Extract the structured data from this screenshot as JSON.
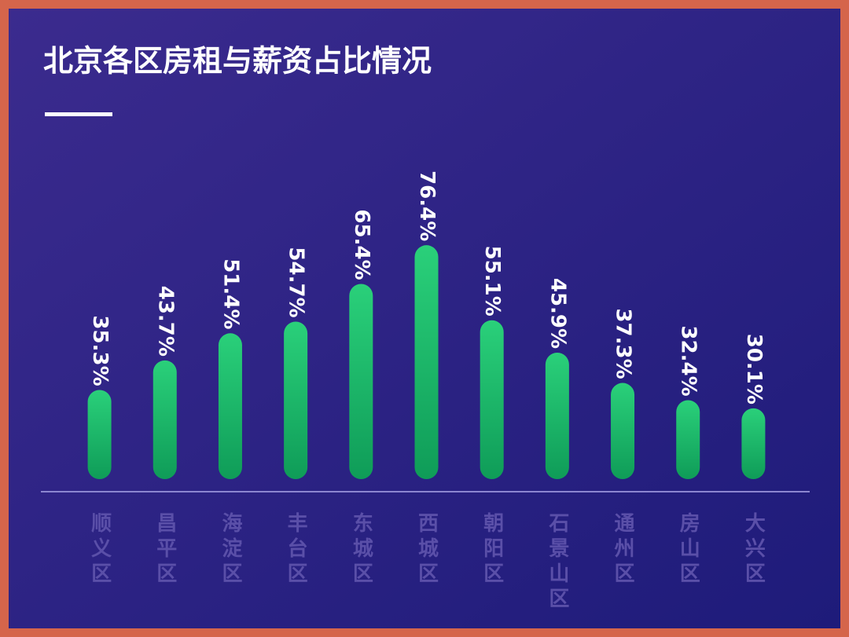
{
  "chart_data": {
    "type": "bar",
    "title": "北京各区房租与薪资占比情况",
    "categories": [
      "顺义区",
      "昌平区",
      "海淀区",
      "丰台区",
      "东城区",
      "西城区",
      "朝阳区",
      "石景山区",
      "通州区",
      "房山区",
      "大兴区"
    ],
    "values": [
      35.3,
      43.7,
      51.4,
      54.7,
      65.4,
      76.4,
      55.1,
      45.9,
      37.3,
      32.4,
      30.1
    ],
    "value_labels": [
      "35.3%",
      "43.7%",
      "51.4%",
      "54.7%",
      "65.4%",
      "76.4%",
      "55.1%",
      "45.9%",
      "37.3%",
      "32.4%",
      "30.1%"
    ],
    "color": "#1fc06a",
    "ylim": [
      10,
      78
    ]
  }
}
